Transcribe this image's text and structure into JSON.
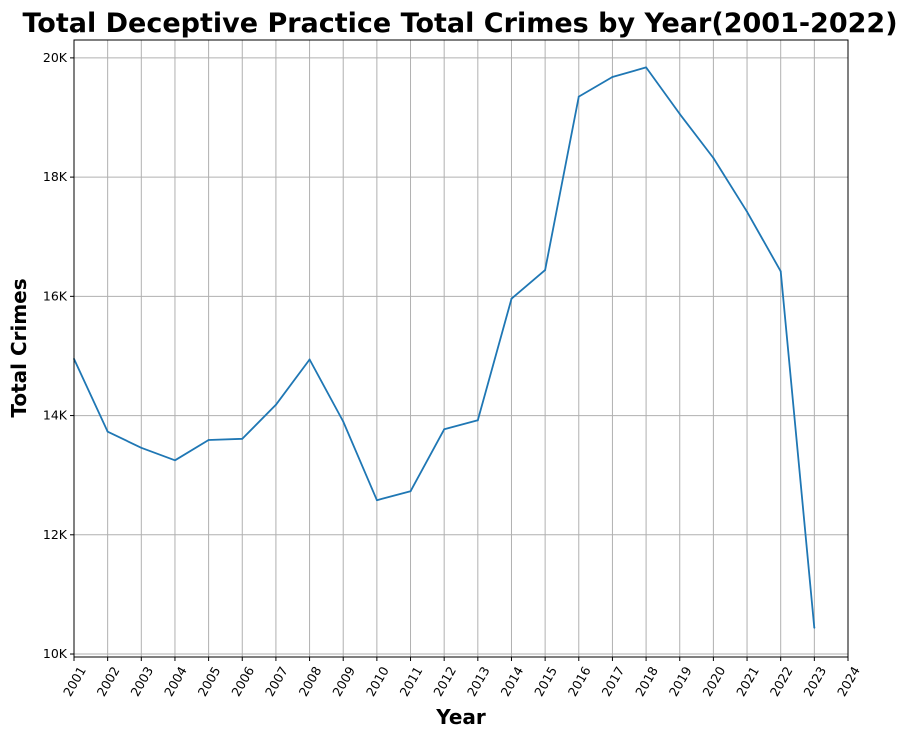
{
  "chart_data": {
    "type": "line",
    "title": "Total Deceptive Practice Total Crimes by Year(2001-2022)",
    "xlabel": "Year",
    "ylabel": "Total Crimes",
    "xlim": [
      2001,
      2024
    ],
    "ylim": [
      9950,
      20300
    ],
    "x_ticks": [
      2001,
      2002,
      2003,
      2004,
      2005,
      2006,
      2007,
      2008,
      2009,
      2010,
      2011,
      2012,
      2013,
      2014,
      2015,
      2016,
      2017,
      2018,
      2019,
      2020,
      2021,
      2022,
      2023,
      2024
    ],
    "x_tick_labels": [
      "2001",
      "2002",
      "2003",
      "2004",
      "2005",
      "2006",
      "2007",
      "2008",
      "2009",
      "2010",
      "2011",
      "2012",
      "2013",
      "2014",
      "2015",
      "2016",
      "2017",
      "2018",
      "2019",
      "2020",
      "2021",
      "2022",
      "2023",
      "2024"
    ],
    "y_ticks": [
      10000,
      12000,
      14000,
      16000,
      18000,
      20000
    ],
    "y_tick_labels": [
      "10K",
      "12K",
      "14K",
      "16K",
      "18K",
      "20K"
    ],
    "grid": true,
    "legend": "none",
    "line_color": "#1f77b4",
    "series": [
      {
        "x": [
          2001,
          2002,
          2003,
          2004,
          2005,
          2006,
          2007,
          2008,
          2009,
          2010,
          2011,
          2012,
          2013,
          2014,
          2015,
          2016,
          2017,
          2018,
          2019,
          2020,
          2021,
          2022,
          2023
        ],
        "values": [
          14950,
          13730,
          13460,
          13250,
          13590,
          13610,
          14180,
          14940,
          13900,
          12580,
          12730,
          13770,
          13920,
          15960,
          16440,
          19350,
          19680,
          19840,
          19060,
          18320,
          17420,
          16420,
          10440
        ]
      }
    ]
  }
}
